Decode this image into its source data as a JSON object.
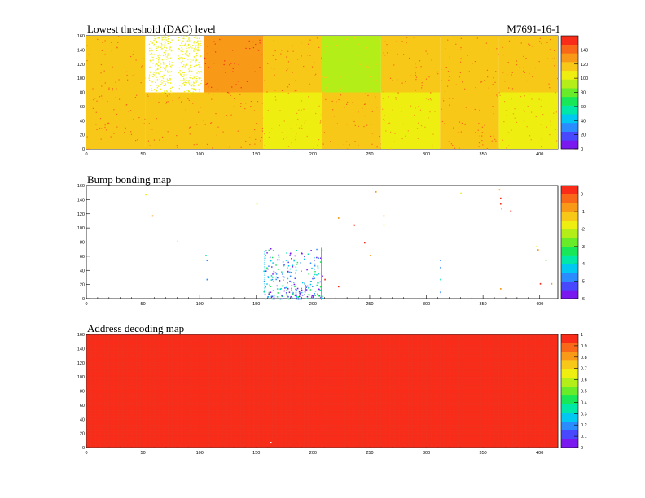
{
  "module_id": "M7691-16-1",
  "chart_data": [
    {
      "type": "heatmap",
      "title": "Lowest threshold (DAC) level",
      "xlim": [
        0,
        416
      ],
      "ylim": [
        0,
        160
      ],
      "x_ticks": [
        0,
        50,
        100,
        150,
        200,
        250,
        300,
        350,
        400
      ],
      "y_ticks": [
        0,
        20,
        40,
        60,
        80,
        100,
        120,
        140,
        160
      ],
      "z_range": [
        0,
        160
      ],
      "z_ticks": [
        0,
        20,
        40,
        60,
        80,
        100,
        120,
        140
      ],
      "grid": false,
      "legend": "right",
      "readout_chips_top_row": [
        {
          "x_range": [
            0,
            52
          ],
          "value": 118
        },
        {
          "x_range": [
            52,
            104
          ],
          "value": 100,
          "partially_empty": true
        },
        {
          "x_range": [
            104,
            156
          ],
          "value": 132
        },
        {
          "x_range": [
            156,
            208
          ],
          "value": 112
        },
        {
          "x_range": [
            208,
            260
          ],
          "value": 96
        },
        {
          "x_range": [
            260,
            312
          ],
          "value": 120
        },
        {
          "x_range": [
            312,
            364
          ],
          "value": 112
        },
        {
          "x_range": [
            364,
            416
          ],
          "value": 112
        }
      ],
      "readout_chips_bottom_row": [
        {
          "x_range": [
            0,
            52
          ],
          "value": 115
        },
        {
          "x_range": [
            52,
            104
          ],
          "value": 115
        },
        {
          "x_range": [
            104,
            156
          ],
          "value": 115
        },
        {
          "x_range": [
            156,
            208
          ],
          "value": 100
        },
        {
          "x_range": [
            208,
            260
          ],
          "value": 112
        },
        {
          "x_range": [
            260,
            312
          ],
          "value": 100
        },
        {
          "x_range": [
            312,
            364
          ],
          "value": 112
        },
        {
          "x_range": [
            364,
            416
          ],
          "value": 102
        }
      ]
    },
    {
      "type": "scatter",
      "title": "Bump bonding map",
      "xlim": [
        0,
        416
      ],
      "ylim": [
        0,
        160
      ],
      "x_ticks": [
        0,
        50,
        100,
        150,
        200,
        250,
        300,
        350,
        400
      ],
      "y_ticks": [
        0,
        20,
        40,
        60,
        80,
        100,
        120,
        140,
        160
      ],
      "z_range": [
        -6,
        0.5
      ],
      "z_ticks": [
        0,
        -1,
        -2,
        -3,
        -4,
        -5,
        -6
      ],
      "grid": false,
      "legend": "right",
      "points": [
        {
          "x": 52,
          "y": 148,
          "z": -2
        },
        {
          "x": 58,
          "y": 118,
          "z": -1
        },
        {
          "x": 80,
          "y": 82,
          "z": -2
        },
        {
          "x": 105,
          "y": 62,
          "z": -4
        },
        {
          "x": 106,
          "y": 55,
          "z": -5
        },
        {
          "x": 106,
          "y": 28,
          "z": -5
        },
        {
          "x": 150,
          "y": 135,
          "z": -2
        },
        {
          "x": 222,
          "y": 115,
          "z": -1
        },
        {
          "x": 236,
          "y": 105,
          "z": 0
        },
        {
          "x": 245,
          "y": 80,
          "z": 0
        },
        {
          "x": 250,
          "y": 62,
          "z": -1
        },
        {
          "x": 255,
          "y": 152,
          "z": -1
        },
        {
          "x": 262,
          "y": 118,
          "z": -1
        },
        {
          "x": 262,
          "y": 105,
          "z": -2
        },
        {
          "x": 312,
          "y": 55,
          "z": -5
        },
        {
          "x": 312,
          "y": 45,
          "z": -5
        },
        {
          "x": 312,
          "y": 28,
          "z": -4
        },
        {
          "x": 312,
          "y": 10,
          "z": -5
        },
        {
          "x": 330,
          "y": 150,
          "z": -2
        },
        {
          "x": 364,
          "y": 155,
          "z": -1
        },
        {
          "x": 365,
          "y": 143,
          "z": 0
        },
        {
          "x": 365,
          "y": 135,
          "z": 0
        },
        {
          "x": 366,
          "y": 128,
          "z": -1
        },
        {
          "x": 374,
          "y": 125,
          "z": 0
        },
        {
          "x": 365,
          "y": 15,
          "z": -1
        },
        {
          "x": 397,
          "y": 75,
          "z": -2
        },
        {
          "x": 398,
          "y": 70,
          "z": -1
        },
        {
          "x": 400,
          "y": 22,
          "z": 0
        },
        {
          "x": 410,
          "y": 22,
          "z": -1
        },
        {
          "x": 405,
          "y": 55,
          "z": -3
        },
        {
          "x": 222,
          "y": 18,
          "z": 0
        },
        {
          "x": 210,
          "y": 28,
          "z": 0
        }
      ],
      "dense_cluster": {
        "x_range": [
          156,
          208
        ],
        "y_range": [
          0,
          72
        ],
        "z_range": [
          -6,
          -3
        ]
      }
    },
    {
      "type": "heatmap",
      "title": "Address decoding map",
      "xlim": [
        0,
        416
      ],
      "ylim": [
        0,
        160
      ],
      "x_ticks": [
        0,
        50,
        100,
        150,
        200,
        250,
        300,
        350,
        400
      ],
      "y_ticks": [
        0,
        20,
        40,
        60,
        80,
        100,
        120,
        140,
        160
      ],
      "z_range": [
        0,
        1
      ],
      "z_ticks": [
        0,
        0.1,
        0.2,
        0.3,
        0.4,
        0.5,
        0.6,
        0.7,
        0.8,
        0.9,
        1
      ],
      "grid": false,
      "legend": "right",
      "uniform_value": 1,
      "outliers": [
        {
          "x": 162,
          "y": 8,
          "z": 0
        }
      ]
    }
  ]
}
